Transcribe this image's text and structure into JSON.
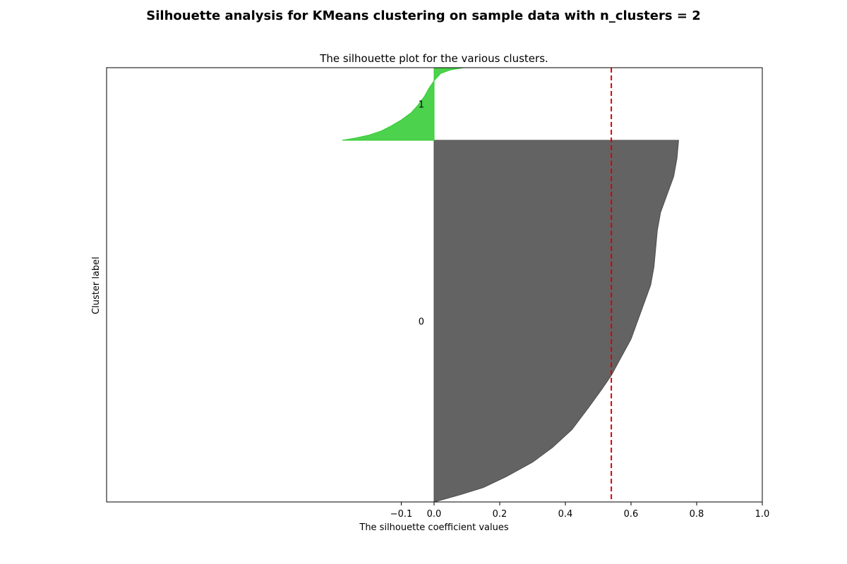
{
  "figure": {
    "suptitle": "Silhouette analysis for KMeans clustering on sample data with n_clusters = 2"
  },
  "chart_data": {
    "type": "area",
    "title": "The silhouette plot for the various clusters.",
    "xlabel": "The silhouette coefficient values",
    "ylabel": "Cluster label",
    "xlim": [
      -0.1,
      1.0
    ],
    "xticks": [
      -0.1,
      0.0,
      0.2,
      0.4,
      0.6,
      0.8,
      1.0
    ],
    "xtick_labels": [
      "−0.1",
      "0.0",
      "0.2",
      "0.4",
      "0.6",
      "0.8",
      "1.0"
    ],
    "yticks": [],
    "grid": false,
    "average_silhouette_score": 0.54,
    "average_line_color": "#dd0000",
    "clusters": [
      {
        "label": "0",
        "color": "#4d4d4d",
        "profile": [
          [
            0.0,
            0.0
          ],
          [
            0.08,
            0.02
          ],
          [
            0.15,
            0.04
          ],
          [
            0.22,
            0.07
          ],
          [
            0.3,
            0.11
          ],
          [
            0.36,
            0.15
          ],
          [
            0.42,
            0.2
          ],
          [
            0.47,
            0.26
          ],
          [
            0.51,
            0.31
          ],
          [
            0.54,
            0.35
          ],
          [
            0.57,
            0.4
          ],
          [
            0.6,
            0.45
          ],
          [
            0.62,
            0.5
          ],
          [
            0.64,
            0.55
          ],
          [
            0.66,
            0.6
          ],
          [
            0.67,
            0.65
          ],
          [
            0.675,
            0.7
          ],
          [
            0.68,
            0.75
          ],
          [
            0.69,
            0.8
          ],
          [
            0.71,
            0.85
          ],
          [
            0.73,
            0.9
          ],
          [
            0.74,
            0.95
          ],
          [
            0.745,
            1.0
          ]
        ]
      },
      {
        "label": "1",
        "color": "#33cc33",
        "profile": [
          [
            -0.28,
            0.0
          ],
          [
            -0.24,
            0.03
          ],
          [
            -0.2,
            0.07
          ],
          [
            -0.16,
            0.13
          ],
          [
            -0.13,
            0.2
          ],
          [
            -0.1,
            0.28
          ],
          [
            -0.07,
            0.38
          ],
          [
            -0.05,
            0.48
          ],
          [
            -0.03,
            0.6
          ],
          [
            -0.015,
            0.72
          ],
          [
            0.0,
            0.82
          ],
          [
            0.02,
            0.92
          ],
          [
            0.05,
            0.97
          ],
          [
            0.09,
            1.0
          ]
        ]
      }
    ]
  }
}
